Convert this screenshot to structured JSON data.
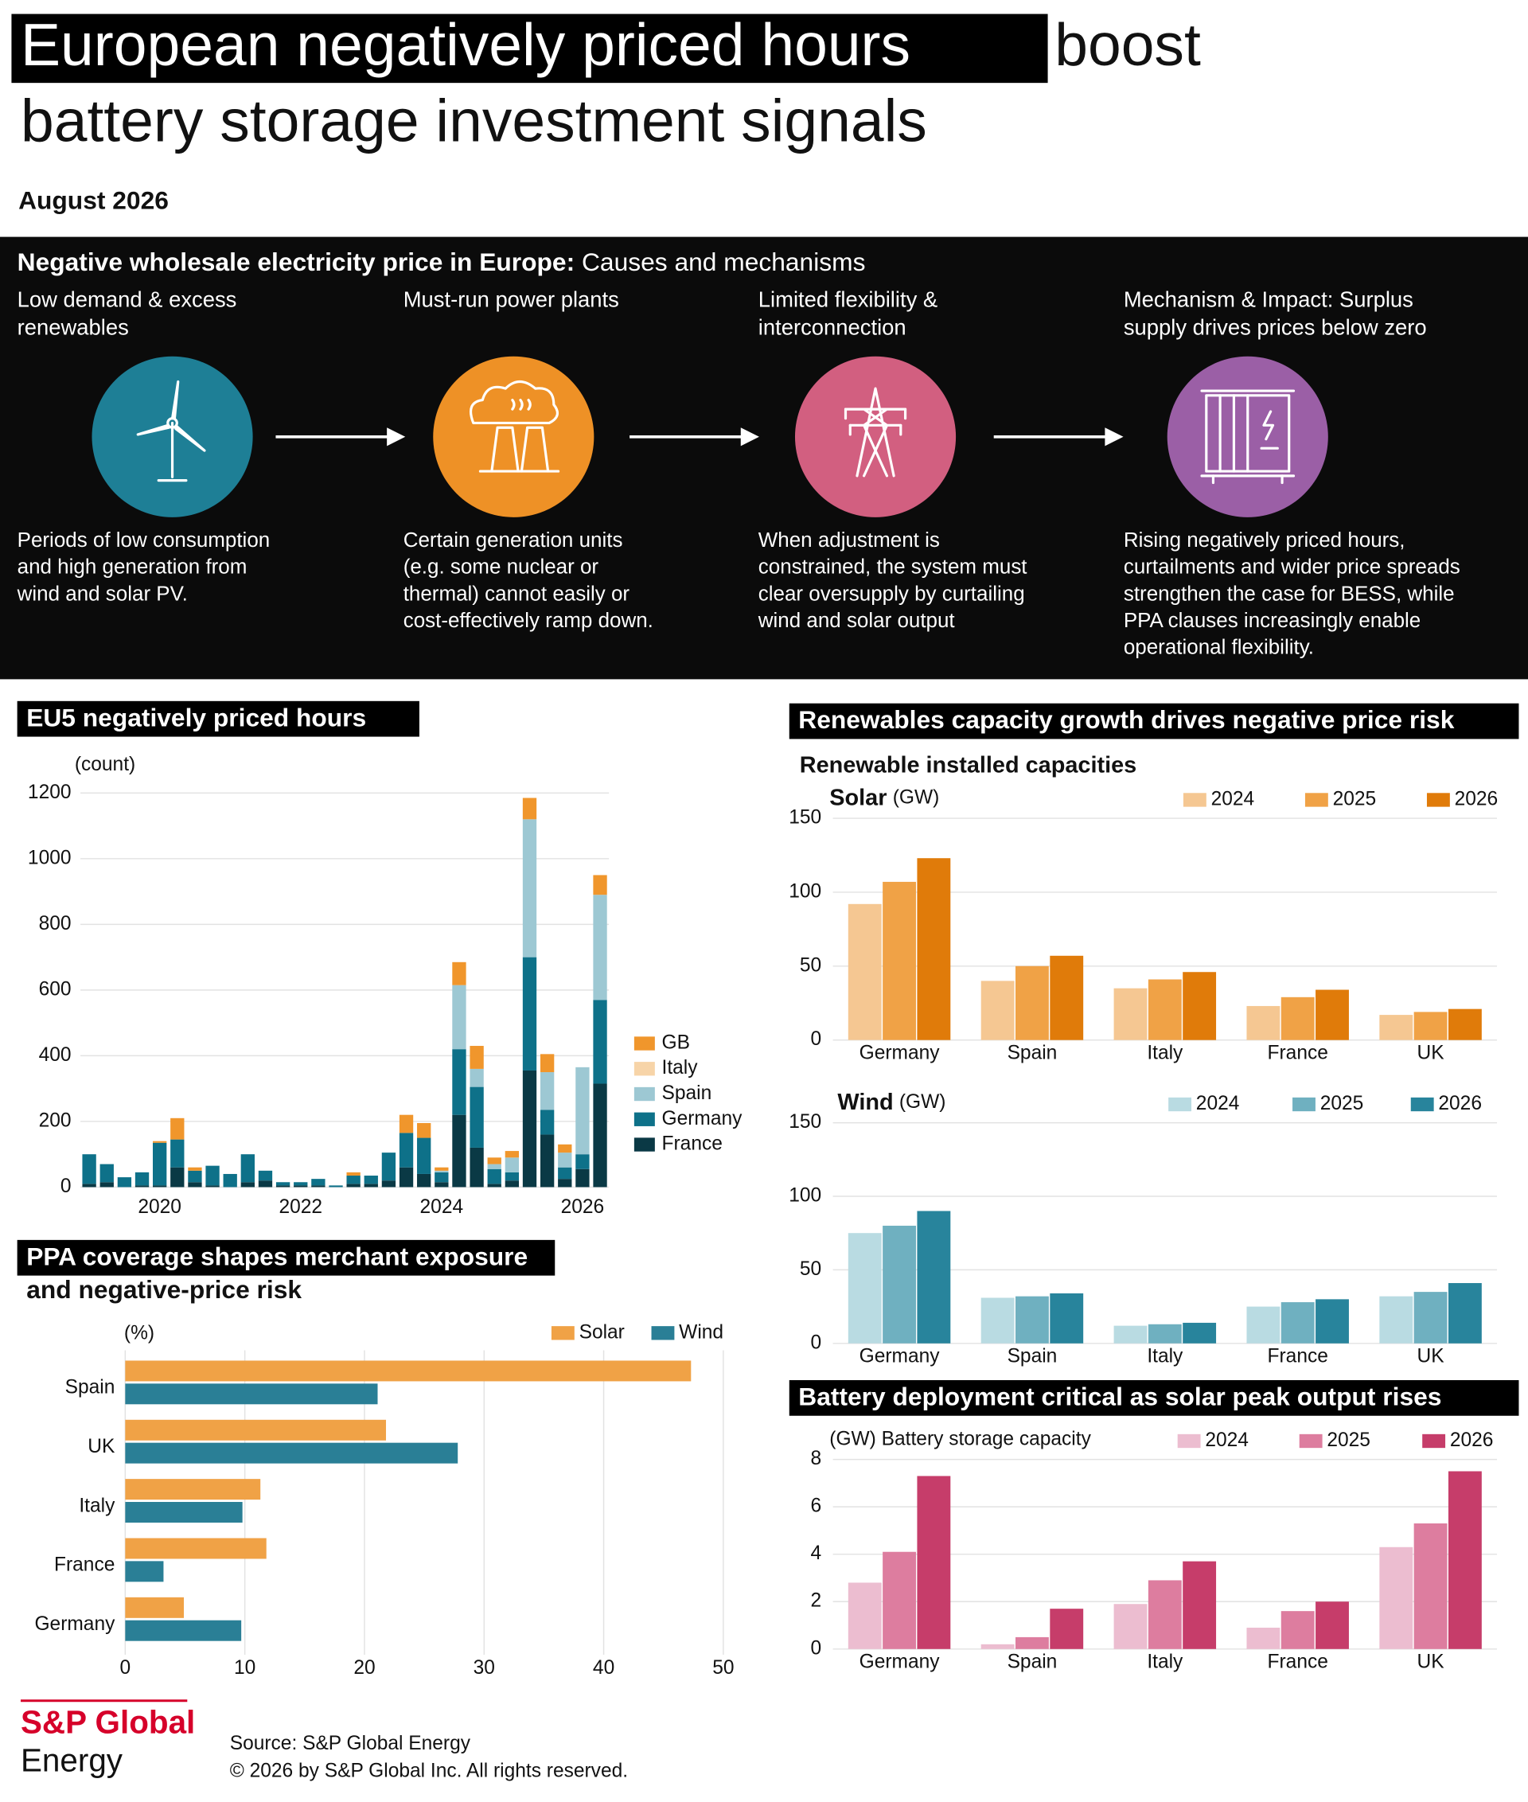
{
  "header": {
    "title_highlight": "European negatively priced hours",
    "title_rest": "boost",
    "title_line2": "battery storage investment signals",
    "date": "August 2026"
  },
  "causes": {
    "heading_bold": "Negative wholesale electricity price in Europe:",
    "heading_rest": "Causes and mechanisms",
    "steps": [
      {
        "title_lines": [
          "Low demand & excess",
          "renewables"
        ],
        "text_lines": [
          "Periods of low consumption",
          "and high generation from",
          "wind and solar PV."
        ]
      },
      {
        "title_lines": [
          "Must-run power plants"
        ],
        "text_lines": [
          "Certain generation units",
          "(e.g. some nuclear or",
          "thermal) cannot easily or",
          "cost-effectively ramp down."
        ]
      },
      {
        "title_lines": [
          "Limited flexibility &",
          "interconnection"
        ],
        "text_lines": [
          "When adjustment is",
          "constrained, the system must",
          "clear oversupply by curtailing",
          "wind and solar output"
        ]
      },
      {
        "title_lines": [
          "Mechanism & Impact: Surplus",
          "supply drives prices below zero"
        ],
        "text_lines": [
          "Rising negatively priced hours,",
          "curtailments and wider price spreads",
          "strengthen the case for BESS, while",
          "PPA clauses increasingly enable",
          "operational flexibility."
        ]
      }
    ]
  },
  "chart_data": [
    {
      "type": "stacked_bar",
      "title": "EU5 negatively priced hours",
      "y_label": "(count)",
      "categories": [
        null,
        null,
        null,
        null,
        "2020",
        null,
        null,
        null,
        null,
        null,
        null,
        null,
        "2022",
        null,
        null,
        null,
        null,
        null,
        null,
        null,
        "2024",
        null,
        null,
        null,
        null,
        null,
        null,
        null,
        "2026",
        null
      ],
      "series": [
        {
          "name": "GB",
          "color": "#f0962c",
          "values": [
            0,
            0,
            0,
            0,
            5,
            65,
            10,
            0,
            0,
            0,
            0,
            0,
            0,
            0,
            0,
            10,
            0,
            0,
            55,
            45,
            10,
            70,
            70,
            20,
            20,
            65,
            55,
            25,
            0,
            60
          ]
        },
        {
          "name": "Italy",
          "color": "#f7d4a8",
          "values": [
            0,
            0,
            0,
            0,
            0,
            0,
            0,
            0,
            0,
            0,
            0,
            0,
            0,
            0,
            0,
            0,
            0,
            0,
            0,
            0,
            0,
            0,
            0,
            0,
            0,
            0,
            0,
            0,
            0,
            0
          ]
        },
        {
          "name": "Spain",
          "color": "#9dc8d3",
          "values": [
            0,
            0,
            0,
            0,
            0,
            0,
            0,
            0,
            0,
            0,
            0,
            0,
            0,
            0,
            0,
            0,
            0,
            0,
            0,
            0,
            5,
            195,
            55,
            15,
            45,
            420,
            115,
            45,
            265,
            320
          ]
        },
        {
          "name": "Germany",
          "color": "#0e7189",
          "values": [
            90,
            55,
            30,
            40,
            130,
            85,
            35,
            60,
            40,
            85,
            30,
            10,
            10,
            20,
            5,
            25,
            25,
            85,
            105,
            110,
            30,
            200,
            185,
            45,
            25,
            345,
            75,
            35,
            45,
            255
          ]
        },
        {
          "name": "France",
          "color": "#0a3945",
          "values": [
            10,
            15,
            0,
            5,
            5,
            60,
            15,
            5,
            0,
            15,
            20,
            5,
            5,
            5,
            0,
            10,
            10,
            20,
            60,
            40,
            15,
            220,
            120,
            10,
            20,
            355,
            160,
            25,
            55,
            315
          ]
        }
      ],
      "ylim": [
        0,
        1200
      ],
      "yticks": [
        0,
        200,
        400,
        600,
        800,
        1000,
        1200
      ],
      "grid": true
    },
    {
      "type": "horizontal_bar",
      "title_lines": [
        "PPA coverage shapes merchant exposure",
        "and negative-price risk"
      ],
      "x_label": "(%)",
      "categories": [
        "Spain",
        "UK",
        "Italy",
        "France",
        "Germany"
      ],
      "series": [
        {
          "name": "Solar",
          "color": "#f0a246",
          "values": [
            47.3,
            21.8,
            11.3,
            11.8,
            4.9
          ]
        },
        {
          "name": "Wind",
          "color": "#2a7f96",
          "values": [
            21.1,
            27.8,
            9.8,
            3.2,
            9.7
          ]
        }
      ],
      "xlim": [
        0,
        51
      ],
      "xticks": [
        0,
        10,
        20,
        30,
        40,
        50
      ],
      "grid": true
    },
    {
      "type": "bar",
      "title": "Renewables capacity growth drives negative price risk",
      "subtitle": "Renewable installed capacities",
      "panel_title": "Solar",
      "unit": "(GW)",
      "categories": [
        "Germany",
        "Spain",
        "Italy",
        "France",
        "UK"
      ],
      "series": [
        {
          "name": "2024",
          "color": "#f5c792",
          "values": [
            92,
            40,
            35,
            23,
            17
          ]
        },
        {
          "name": "2025",
          "color": "#f0a246",
          "values": [
            107,
            50,
            41,
            29,
            19
          ]
        },
        {
          "name": "2026",
          "color": "#e07b0a",
          "values": [
            123,
            57,
            46,
            34,
            21
          ]
        }
      ],
      "ylim": [
        0,
        150
      ],
      "yticks": [
        0,
        50,
        100,
        150
      ],
      "grid": true
    },
    {
      "type": "bar",
      "panel_title": "Wind",
      "unit": "(GW)",
      "categories": [
        "Germany",
        "Spain",
        "Italy",
        "France",
        "UK"
      ],
      "series": [
        {
          "name": "2024",
          "color": "#b9dbe2",
          "values": [
            75,
            31,
            12,
            25,
            32
          ]
        },
        {
          "name": "2025",
          "color": "#6fb0c0",
          "values": [
            80,
            32,
            13,
            28,
            35
          ]
        },
        {
          "name": "2026",
          "color": "#28849c",
          "values": [
            90,
            34,
            14,
            30,
            41
          ]
        }
      ],
      "ylim": [
        0,
        150
      ],
      "yticks": [
        0,
        50,
        100,
        150
      ],
      "grid": true
    },
    {
      "type": "bar",
      "title": "Battery deployment critical as solar peak output rises",
      "y_label": "(GW) Battery storage capacity",
      "categories": [
        "Germany",
        "Spain",
        "Italy",
        "France",
        "UK"
      ],
      "series": [
        {
          "name": "2024",
          "color": "#ecbdd0",
          "values": [
            2.8,
            0.2,
            1.9,
            0.9,
            4.3
          ]
        },
        {
          "name": "2025",
          "color": "#dd7d9f",
          "values": [
            4.1,
            0.5,
            2.9,
            1.6,
            5.3
          ]
        },
        {
          "name": "2026",
          "color": "#c63d6a",
          "values": [
            7.3,
            1.7,
            3.7,
            2.0,
            7.5
          ]
        }
      ],
      "ylim": [
        0,
        8
      ],
      "yticks": [
        0,
        2,
        4,
        6,
        8
      ],
      "grid": true
    }
  ],
  "footer": {
    "brand": "S&P Global",
    "brand_sub": "Energy",
    "source": "Source: S&P Global Energy",
    "copyright": "© 2026 by S&P Global Inc.  All rights reserved."
  }
}
